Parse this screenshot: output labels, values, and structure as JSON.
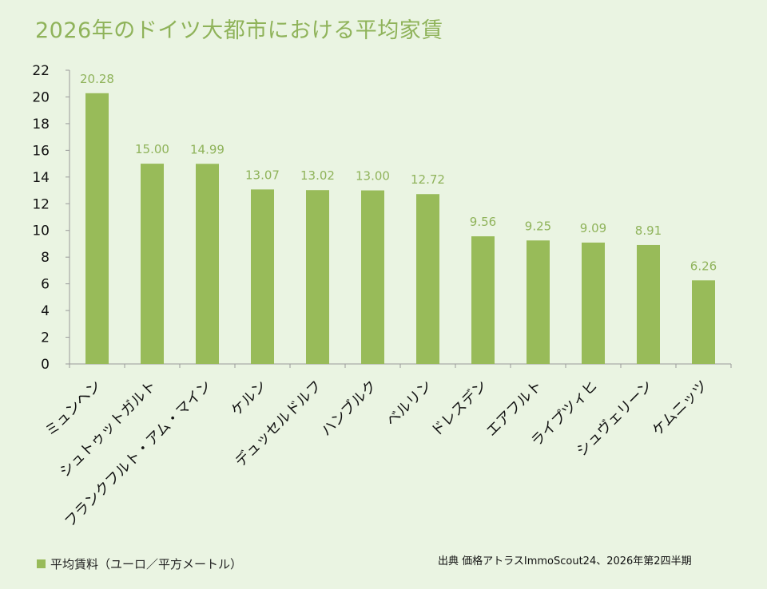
{
  "chart_data": {
    "type": "bar",
    "title": "2026年のドイツ大都市における平均家賃",
    "categories": [
      "ミュンヘン",
      "シュトゥットガルト",
      "フランクフルト・アム・マイン",
      "ケルン",
      "デュッセルドルフ",
      "ハンブルク",
      "ベルリン",
      "ドレスデン",
      "エアフルト",
      "ライプツィヒ",
      "シュヴェリーン",
      "ケムニッツ"
    ],
    "series": [
      {
        "name": "平均賃料（ユーロ／平方メートル）",
        "values": [
          20.28,
          15.0,
          14.99,
          13.07,
          13.02,
          13.0,
          12.72,
          9.56,
          9.25,
          9.09,
          8.91,
          6.26
        ]
      }
    ],
    "data_labels": [
      "20.28",
      "15.00",
      "14.99",
      "13.07",
      "13.02",
      "13.00",
      "12.72",
      "9.56",
      "9.25",
      "9.09",
      "8.91",
      "6.26"
    ],
    "yticks": [
      "0",
      "2",
      "4",
      "6",
      "8",
      "10",
      "12",
      "14",
      "16",
      "18",
      "20",
      "22"
    ],
    "ylim": [
      0,
      22
    ],
    "xlabel": "",
    "ylabel": "",
    "grid": false,
    "legend_position": "bottom-left",
    "bar_color": "#98bb59",
    "label_color": "#8fb35a",
    "source": "出典 価格アトラスImmoScout24、2026年第2四半期"
  }
}
